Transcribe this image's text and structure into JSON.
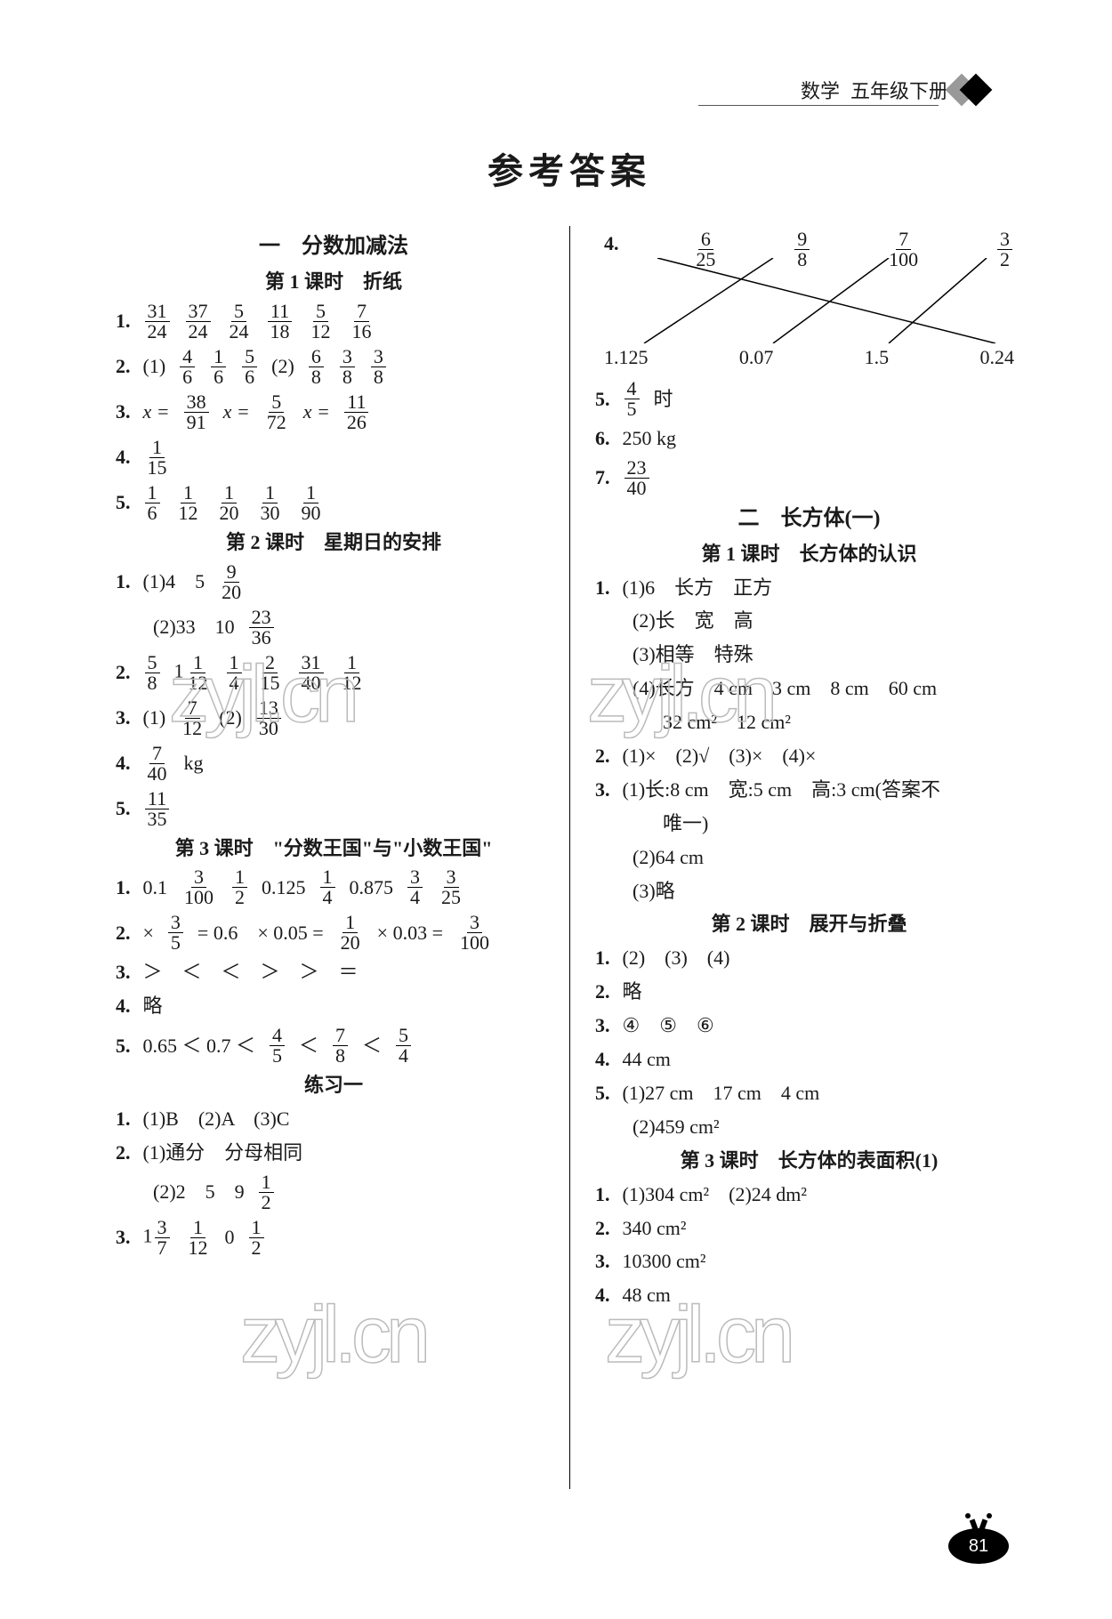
{
  "header": {
    "subject": "数学",
    "grade": "五年级下册"
  },
  "main_title": "参考答案",
  "page_number": "81",
  "watermark": "zyjl.cn",
  "colors": {
    "text": "#1a1a1a",
    "rule": "#000000",
    "wm_stroke": "#bbbbbb"
  },
  "left": {
    "sec1_title": "一　分数加减法",
    "l1_title": "第 1 课时　折纸",
    "q1": {
      "num": "1.",
      "fracs": [
        [
          "31",
          "24"
        ],
        [
          "37",
          "24"
        ],
        [
          "5",
          "24"
        ],
        [
          "11",
          "18"
        ],
        [
          "5",
          "12"
        ],
        [
          "7",
          "16"
        ]
      ]
    },
    "q2": {
      "num": "2.",
      "p1": "(1)",
      "f1": [
        [
          "4",
          "6"
        ],
        [
          "1",
          "6"
        ],
        [
          "5",
          "6"
        ]
      ],
      "p2": "(2)",
      "f2": [
        [
          "6",
          "8"
        ],
        [
          "3",
          "8"
        ],
        [
          "3",
          "8"
        ]
      ]
    },
    "q3": {
      "num": "3.",
      "eqs": [
        [
          "x =",
          "38",
          "91"
        ],
        [
          "x =",
          "5",
          "72"
        ],
        [
          "x =",
          "11",
          "26"
        ]
      ]
    },
    "q4": {
      "num": "4.",
      "frac": [
        "1",
        "15"
      ]
    },
    "q5": {
      "num": "5.",
      "fracs": [
        [
          "1",
          "6"
        ],
        [
          "1",
          "12"
        ],
        [
          "1",
          "20"
        ],
        [
          "1",
          "30"
        ],
        [
          "1",
          "90"
        ]
      ]
    },
    "l2_title": "第 2 课时　星期日的安排",
    "q6": {
      "num": "1.",
      "p1": "(1)4　5",
      "f1": [
        "9",
        "20"
      ],
      "p2": "(2)33　10",
      "f2": [
        "23",
        "36"
      ]
    },
    "q7": {
      "num": "2.",
      "items": [
        [
          "5",
          "8"
        ],
        [
          "1",
          "1",
          "12"
        ],
        [
          "1",
          "4"
        ],
        [
          "2",
          "15"
        ],
        [
          "31",
          "40"
        ],
        [
          "1",
          "12"
        ]
      ]
    },
    "q8": {
      "num": "3.",
      "p1": "(1)",
      "f1": [
        "7",
        "12"
      ],
      "p2": "(2)",
      "f2": [
        "13",
        "30"
      ]
    },
    "q9": {
      "num": "4.",
      "frac": [
        "7",
        "40"
      ],
      "unit": "kg"
    },
    "q10": {
      "num": "5.",
      "frac": [
        "11",
        "35"
      ]
    },
    "l3_title": "第 3 课时　\"分数王国\"与\"小数王国\"",
    "q11": {
      "num": "1.",
      "seq": [
        "0.1",
        [
          "3",
          "100"
        ],
        [
          "1",
          "2"
        ],
        "0.125",
        [
          "1",
          "4"
        ],
        "0.875",
        [
          "3",
          "4"
        ],
        [
          "3",
          "25"
        ]
      ]
    },
    "q12": {
      "num": "2.",
      "a": "×",
      "f1": [
        "3",
        "5"
      ],
      "b": "= 0.6　× 0.05 =",
      "f2": [
        "1",
        "20"
      ],
      "c": "× 0.03 =",
      "f3": [
        "3",
        "100"
      ]
    },
    "q13": {
      "num": "3.",
      "ops": "＞　＜　＜　＞　＞　＝"
    },
    "q14": {
      "num": "4.",
      "txt": "略"
    },
    "q15": {
      "num": "5.",
      "a": "0.65 ＜ 0.7 ＜",
      "f1": [
        "4",
        "5"
      ],
      "b": "＜",
      "f2": [
        "7",
        "8"
      ],
      "c": "＜",
      "f3": [
        "5",
        "4"
      ]
    },
    "ex1_title": "练习一",
    "q16": {
      "num": "1.",
      "txt": "(1)B　(2)A　(3)C"
    },
    "q17": {
      "num": "2.",
      "p1": "(1)通分　分母相同",
      "p2": "(2)2　5　9",
      "f": [
        "1",
        "2"
      ]
    },
    "q18": {
      "num": "3.",
      "pre": "1",
      "f1": [
        "3",
        "7"
      ],
      "f2": [
        "1",
        "12"
      ],
      "mid": "0",
      "f3": [
        "1",
        "2"
      ]
    }
  },
  "right": {
    "match": {
      "num": "4.",
      "top": [
        [
          "6",
          "25"
        ],
        [
          "9",
          "8"
        ],
        [
          "7",
          "100"
        ],
        [
          "3",
          "2"
        ]
      ],
      "bot": [
        "1.125",
        "0.07",
        "1.5",
        "0.24"
      ],
      "lines": [
        [
          0,
          3
        ],
        [
          1,
          0
        ],
        [
          2,
          1
        ],
        [
          3,
          2
        ]
      ]
    },
    "q5": {
      "num": "5.",
      "frac": [
        "4",
        "5"
      ],
      "unit": "时"
    },
    "q6": {
      "num": "6.",
      "txt": "250 kg"
    },
    "q7": {
      "num": "7.",
      "frac": [
        "23",
        "40"
      ]
    },
    "sec2_title": "二　长方体(一)",
    "l1_title": "第 1 课时　长方体的认识",
    "r1": {
      "num": "1.",
      "p1": "(1)6　长方　正方",
      "p2": "(2)长　宽　高",
      "p3": "(3)相等　特殊",
      "p4a": "(4)长方　4 cm　3 cm　8 cm　60 cm",
      "p4b": "32 cm²　12 cm²"
    },
    "r2": {
      "num": "2.",
      "txt": "(1)×　(2)√　(3)×　(4)×"
    },
    "r3": {
      "num": "3.",
      "p1": "(1)长:8 cm　宽:5 cm　高:3 cm(答案不",
      "p1b": "唯一)",
      "p2": "(2)64 cm",
      "p3": "(3)略"
    },
    "l2_title": "第 2 课时　展开与折叠",
    "r4": {
      "num": "1.",
      "txt": "(2)　(3)　(4)"
    },
    "r5": {
      "num": "2.",
      "txt": "略"
    },
    "r6": {
      "num": "3.",
      "txt": "④　⑤　⑥"
    },
    "r7": {
      "num": "4.",
      "txt": "44 cm"
    },
    "r8": {
      "num": "5.",
      "p1": "(1)27 cm　17 cm　4 cm",
      "p2": "(2)459 cm²"
    },
    "l3_title": "第 3 课时　长方体的表面积(1)",
    "r9": {
      "num": "1.",
      "txt": "(1)304 cm²　(2)24 dm²"
    },
    "r10": {
      "num": "2.",
      "txt": "340 cm²"
    },
    "r11": {
      "num": "3.",
      "txt": "10300 cm²"
    },
    "r12": {
      "num": "4.",
      "txt": "48 cm"
    }
  }
}
